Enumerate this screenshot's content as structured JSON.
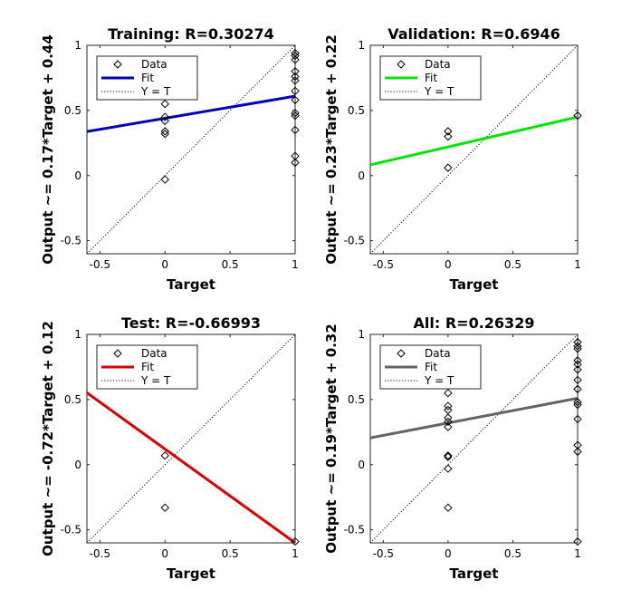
{
  "chart_data": [
    {
      "type": "scatter",
      "title": "Training: R=0.30274",
      "xlabel": "Target",
      "ylabel": "Output ~= 0.17*Target + 0.44",
      "xlim": [
        -0.6,
        1
      ],
      "ylim": [
        -0.6,
        1
      ],
      "xticks": [
        -0.5,
        0,
        0.5,
        1
      ],
      "xtick_labels": [
        "-0.5",
        "0",
        "0.5",
        "1"
      ],
      "yticks": [
        -0.5,
        0,
        0.5,
        1
      ],
      "ytick_labels": [
        "-0.5",
        "0",
        "0.5",
        "1"
      ],
      "fit": {
        "slope": 0.17,
        "intercept": 0.44,
        "color": "#0000b4"
      },
      "legend": [
        "Data",
        "Fit",
        "Y = T"
      ],
      "legend_position": "top-left",
      "grid": false,
      "points": [
        {
          "x": 0,
          "y": 0.55
        },
        {
          "x": 0,
          "y": 0.45
        },
        {
          "x": 0,
          "y": 0.42
        },
        {
          "x": 0,
          "y": 0.34
        },
        {
          "x": 0,
          "y": 0.32
        },
        {
          "x": 0,
          "y": -0.03
        },
        {
          "x": 1,
          "y": 0.94
        },
        {
          "x": 1,
          "y": 0.92
        },
        {
          "x": 1,
          "y": 0.89
        },
        {
          "x": 1,
          "y": 0.8
        },
        {
          "x": 1,
          "y": 0.76
        },
        {
          "x": 1,
          "y": 0.73
        },
        {
          "x": 1,
          "y": 0.65
        },
        {
          "x": 1,
          "y": 0.58
        },
        {
          "x": 1,
          "y": 0.48
        },
        {
          "x": 1,
          "y": 0.46
        },
        {
          "x": 1,
          "y": 0.35
        },
        {
          "x": 1,
          "y": 0.15
        },
        {
          "x": 1,
          "y": 0.1
        }
      ]
    },
    {
      "type": "scatter",
      "title": "Validation: R=0.6946",
      "xlabel": "Target",
      "ylabel": "Output ~= 0.23*Target + 0.22",
      "xlim": [
        -0.6,
        1
      ],
      "ylim": [
        -0.6,
        1
      ],
      "xticks": [
        -0.5,
        0,
        0.5,
        1
      ],
      "xtick_labels": [
        "-0.5",
        "0",
        "0.5",
        "1"
      ],
      "yticks": [
        -0.5,
        0,
        0.5,
        1
      ],
      "ytick_labels": [
        "-0.5",
        "0",
        "0.5",
        "1"
      ],
      "fit": {
        "slope": 0.23,
        "intercept": 0.22,
        "color": "#00e600"
      },
      "legend": [
        "Data",
        "Fit",
        "Y = T"
      ],
      "legend_position": "top-left",
      "grid": false,
      "points": [
        {
          "x": 0,
          "y": 0.34
        },
        {
          "x": 0,
          "y": 0.3
        },
        {
          "x": 0,
          "y": 0.06
        },
        {
          "x": 1,
          "y": 0.46
        }
      ]
    },
    {
      "type": "scatter",
      "title": "Test: R=-0.66993",
      "xlabel": "Target",
      "ylabel": "Output ~= -0.72*Target + 0.12",
      "xlim": [
        -0.6,
        1
      ],
      "ylim": [
        -0.6,
        1
      ],
      "xticks": [
        -0.5,
        0,
        0.5,
        1
      ],
      "xtick_labels": [
        "-0.5",
        "0",
        "0.5",
        "1"
      ],
      "yticks": [
        -0.5,
        0,
        0.5,
        1
      ],
      "ytick_labels": [
        "-0.5",
        "0",
        "0.5",
        "1"
      ],
      "fit": {
        "slope": -0.72,
        "intercept": 0.12,
        "color": "#dc0000"
      },
      "legend": [
        "Data",
        "Fit",
        "Y = T"
      ],
      "legend_position": "top-left",
      "grid": false,
      "points": [
        {
          "x": 0,
          "y": 0.07
        },
        {
          "x": 0,
          "y": -0.33
        },
        {
          "x": 1,
          "y": -0.59
        }
      ]
    },
    {
      "type": "scatter",
      "title": "All: R=0.26329",
      "xlabel": "Target",
      "ylabel": "Output ~= 0.19*Target + 0.32",
      "xlim": [
        -0.6,
        1
      ],
      "ylim": [
        -0.6,
        1
      ],
      "xticks": [
        -0.5,
        0,
        0.5,
        1
      ],
      "xtick_labels": [
        "-0.5",
        "0",
        "0.5",
        "1"
      ],
      "yticks": [
        -0.5,
        0,
        0.5,
        1
      ],
      "ytick_labels": [
        "-0.5",
        "0",
        "0.5",
        "1"
      ],
      "fit": {
        "slope": 0.19,
        "intercept": 0.32,
        "color": "#646464"
      },
      "legend": [
        "Data",
        "Fit",
        "Y = T"
      ],
      "legend_position": "top-left",
      "grid": false,
      "points": [
        {
          "x": 0,
          "y": 0.55
        },
        {
          "x": 0,
          "y": 0.45
        },
        {
          "x": 0,
          "y": 0.42
        },
        {
          "x": 0,
          "y": 0.36
        },
        {
          "x": 0,
          "y": 0.33
        },
        {
          "x": 0,
          "y": 0.29
        },
        {
          "x": 0,
          "y": 0.07
        },
        {
          "x": 0,
          "y": 0.06
        },
        {
          "x": 0,
          "y": -0.03
        },
        {
          "x": 0,
          "y": -0.33
        },
        {
          "x": 1,
          "y": 0.94
        },
        {
          "x": 1,
          "y": 0.91
        },
        {
          "x": 1,
          "y": 0.89
        },
        {
          "x": 1,
          "y": 0.8
        },
        {
          "x": 1,
          "y": 0.77
        },
        {
          "x": 1,
          "y": 0.73
        },
        {
          "x": 1,
          "y": 0.65
        },
        {
          "x": 1,
          "y": 0.58
        },
        {
          "x": 1,
          "y": 0.48
        },
        {
          "x": 1,
          "y": 0.46
        },
        {
          "x": 1,
          "y": 0.35
        },
        {
          "x": 1,
          "y": 0.15
        },
        {
          "x": 1,
          "y": 0.1
        },
        {
          "x": 1,
          "y": -0.59
        }
      ]
    }
  ]
}
